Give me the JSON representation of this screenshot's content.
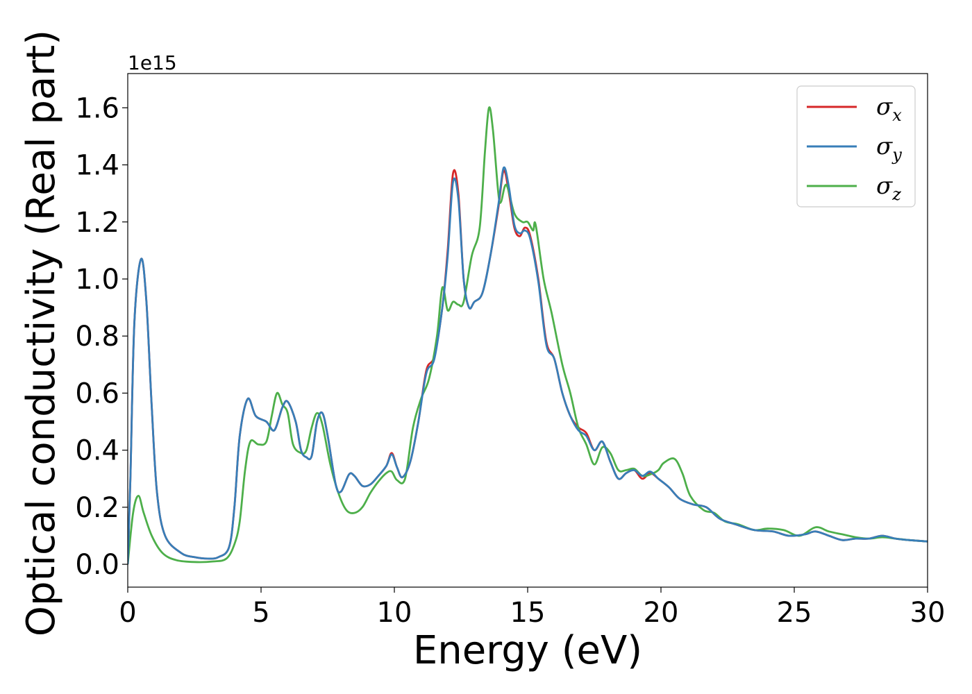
{
  "chart_data": {
    "type": "line",
    "xlabel": "Energy (eV)",
    "ylabel": "Optical conductivity (Real part)",
    "y_offset_label": "1e15",
    "xlim": [
      0,
      30
    ],
    "ylim": [
      -0.08,
      1.72
    ],
    "xticks": [
      0,
      5,
      10,
      15,
      20,
      25,
      30
    ],
    "xtick_labels": [
      "0",
      "5",
      "10",
      "15",
      "20",
      "25",
      "30"
    ],
    "yticks": [
      0.0,
      0.2,
      0.4,
      0.6,
      0.8,
      1.0,
      1.2,
      1.4,
      1.6
    ],
    "ytick_labels": [
      "0.0",
      "0.2",
      "0.4",
      "0.6",
      "0.8",
      "1.0",
      "1.2",
      "1.4",
      "1.6"
    ],
    "grid": false,
    "legend_position": "top-right",
    "series": [
      {
        "name": "σ",
        "sub": "x",
        "color": "#d62728",
        "points": [
          [
            0,
            0
          ],
          [
            0.1,
            0.3
          ],
          [
            0.25,
            0.85
          ],
          [
            0.5,
            1.07
          ],
          [
            0.7,
            0.92
          ],
          [
            0.9,
            0.55
          ],
          [
            1.1,
            0.25
          ],
          [
            1.4,
            0.1
          ],
          [
            2,
            0.04
          ],
          [
            2.5,
            0.025
          ],
          [
            3,
            0.02
          ],
          [
            3.4,
            0.025
          ],
          [
            3.8,
            0.06
          ],
          [
            4.0,
            0.2
          ],
          [
            4.2,
            0.45
          ],
          [
            4.5,
            0.58
          ],
          [
            4.8,
            0.52
          ],
          [
            5.2,
            0.5
          ],
          [
            5.5,
            0.47
          ],
          [
            5.8,
            0.55
          ],
          [
            6.0,
            0.57
          ],
          [
            6.3,
            0.5
          ],
          [
            6.5,
            0.4
          ],
          [
            6.7,
            0.375
          ],
          [
            6.9,
            0.38
          ],
          [
            7.1,
            0.5
          ],
          [
            7.3,
            0.53
          ],
          [
            7.5,
            0.45
          ],
          [
            7.8,
            0.28
          ],
          [
            8.0,
            0.255
          ],
          [
            8.3,
            0.315
          ],
          [
            8.5,
            0.31
          ],
          [
            8.8,
            0.275
          ],
          [
            9.1,
            0.28
          ],
          [
            9.4,
            0.31
          ],
          [
            9.7,
            0.345
          ],
          [
            9.9,
            0.39
          ],
          [
            10.1,
            0.34
          ],
          [
            10.3,
            0.305
          ],
          [
            10.6,
            0.36
          ],
          [
            10.9,
            0.5
          ],
          [
            11.2,
            0.68
          ],
          [
            11.5,
            0.73
          ],
          [
            11.8,
            0.9
          ],
          [
            12.0,
            1.1
          ],
          [
            12.2,
            1.37
          ],
          [
            12.4,
            1.3
          ],
          [
            12.6,
            1.0
          ],
          [
            12.8,
            0.9
          ],
          [
            13.0,
            0.92
          ],
          [
            13.3,
            0.95
          ],
          [
            13.6,
            1.08
          ],
          [
            13.9,
            1.25
          ],
          [
            14.1,
            1.38
          ],
          [
            14.3,
            1.3
          ],
          [
            14.5,
            1.18
          ],
          [
            14.7,
            1.15
          ],
          [
            14.9,
            1.18
          ],
          [
            15.1,
            1.15
          ],
          [
            15.4,
            1.0
          ],
          [
            15.7,
            0.78
          ],
          [
            16.0,
            0.72
          ],
          [
            16.3,
            0.6
          ],
          [
            16.6,
            0.52
          ],
          [
            16.9,
            0.48
          ],
          [
            17.2,
            0.46
          ],
          [
            17.5,
            0.4
          ],
          [
            17.8,
            0.43
          ],
          [
            18.1,
            0.36
          ],
          [
            18.4,
            0.3
          ],
          [
            18.7,
            0.32
          ],
          [
            19.0,
            0.33
          ],
          [
            19.3,
            0.3
          ],
          [
            19.6,
            0.32
          ],
          [
            19.9,
            0.3
          ],
          [
            20.3,
            0.27
          ],
          [
            20.7,
            0.23
          ],
          [
            21.2,
            0.21
          ],
          [
            21.7,
            0.2
          ],
          [
            22.2,
            0.16
          ],
          [
            22.8,
            0.14
          ],
          [
            23.5,
            0.12
          ],
          [
            24.2,
            0.115
          ],
          [
            24.8,
            0.1
          ],
          [
            25.4,
            0.105
          ],
          [
            25.8,
            0.115
          ],
          [
            26.3,
            0.1
          ],
          [
            26.8,
            0.085
          ],
          [
            27.3,
            0.09
          ],
          [
            27.8,
            0.09
          ],
          [
            28.3,
            0.1
          ],
          [
            28.8,
            0.09
          ],
          [
            29.3,
            0.085
          ],
          [
            30,
            0.08
          ]
        ]
      },
      {
        "name": "σ",
        "sub": "y",
        "color": "#377eb8",
        "points": [
          [
            0,
            0
          ],
          [
            0.1,
            0.3
          ],
          [
            0.25,
            0.85
          ],
          [
            0.5,
            1.07
          ],
          [
            0.7,
            0.92
          ],
          [
            0.9,
            0.55
          ],
          [
            1.1,
            0.25
          ],
          [
            1.4,
            0.1
          ],
          [
            2,
            0.04
          ],
          [
            2.5,
            0.025
          ],
          [
            3,
            0.02
          ],
          [
            3.4,
            0.025
          ],
          [
            3.8,
            0.06
          ],
          [
            4.0,
            0.2
          ],
          [
            4.2,
            0.45
          ],
          [
            4.5,
            0.58
          ],
          [
            4.8,
            0.52
          ],
          [
            5.2,
            0.5
          ],
          [
            5.5,
            0.47
          ],
          [
            5.8,
            0.55
          ],
          [
            6.0,
            0.57
          ],
          [
            6.3,
            0.5
          ],
          [
            6.5,
            0.4
          ],
          [
            6.7,
            0.375
          ],
          [
            6.9,
            0.38
          ],
          [
            7.1,
            0.5
          ],
          [
            7.3,
            0.53
          ],
          [
            7.5,
            0.45
          ],
          [
            7.8,
            0.28
          ],
          [
            8.0,
            0.255
          ],
          [
            8.3,
            0.315
          ],
          [
            8.5,
            0.31
          ],
          [
            8.8,
            0.275
          ],
          [
            9.1,
            0.28
          ],
          [
            9.4,
            0.31
          ],
          [
            9.7,
            0.345
          ],
          [
            9.9,
            0.385
          ],
          [
            10.1,
            0.34
          ],
          [
            10.3,
            0.305
          ],
          [
            10.6,
            0.36
          ],
          [
            10.9,
            0.5
          ],
          [
            11.2,
            0.67
          ],
          [
            11.5,
            0.72
          ],
          [
            11.8,
            0.9
          ],
          [
            12.0,
            1.08
          ],
          [
            12.2,
            1.34
          ],
          [
            12.4,
            1.28
          ],
          [
            12.6,
            1.0
          ],
          [
            12.8,
            0.9
          ],
          [
            13.0,
            0.92
          ],
          [
            13.3,
            0.95
          ],
          [
            13.6,
            1.08
          ],
          [
            13.9,
            1.26
          ],
          [
            14.1,
            1.39
          ],
          [
            14.3,
            1.32
          ],
          [
            14.5,
            1.19
          ],
          [
            14.7,
            1.16
          ],
          [
            14.9,
            1.17
          ],
          [
            15.1,
            1.14
          ],
          [
            15.4,
            0.99
          ],
          [
            15.7,
            0.77
          ],
          [
            16.0,
            0.72
          ],
          [
            16.3,
            0.6
          ],
          [
            16.6,
            0.52
          ],
          [
            16.9,
            0.47
          ],
          [
            17.2,
            0.45
          ],
          [
            17.5,
            0.4
          ],
          [
            17.8,
            0.43
          ],
          [
            18.1,
            0.36
          ],
          [
            18.4,
            0.3
          ],
          [
            18.7,
            0.32
          ],
          [
            19.0,
            0.33
          ],
          [
            19.3,
            0.31
          ],
          [
            19.6,
            0.325
          ],
          [
            19.9,
            0.3
          ],
          [
            20.3,
            0.27
          ],
          [
            20.7,
            0.23
          ],
          [
            21.2,
            0.21
          ],
          [
            21.7,
            0.2
          ],
          [
            22.2,
            0.16
          ],
          [
            22.8,
            0.14
          ],
          [
            23.5,
            0.12
          ],
          [
            24.2,
            0.115
          ],
          [
            24.8,
            0.1
          ],
          [
            25.4,
            0.105
          ],
          [
            25.8,
            0.115
          ],
          [
            26.3,
            0.1
          ],
          [
            26.8,
            0.085
          ],
          [
            27.3,
            0.09
          ],
          [
            27.8,
            0.09
          ],
          [
            28.3,
            0.1
          ],
          [
            28.8,
            0.09
          ],
          [
            29.3,
            0.085
          ],
          [
            30,
            0.08
          ]
        ]
      },
      {
        "name": "σ",
        "sub": "z",
        "color": "#4daf4a",
        "points": [
          [
            0,
            0
          ],
          [
            0.2,
            0.18
          ],
          [
            0.4,
            0.24
          ],
          [
            0.6,
            0.18
          ],
          [
            0.9,
            0.1
          ],
          [
            1.3,
            0.04
          ],
          [
            1.8,
            0.015
          ],
          [
            2.5,
            0.008
          ],
          [
            3.2,
            0.01
          ],
          [
            3.7,
            0.02
          ],
          [
            4.0,
            0.07
          ],
          [
            4.2,
            0.15
          ],
          [
            4.4,
            0.33
          ],
          [
            4.6,
            0.43
          ],
          [
            4.9,
            0.42
          ],
          [
            5.2,
            0.43
          ],
          [
            5.4,
            0.52
          ],
          [
            5.6,
            0.6
          ],
          [
            5.8,
            0.56
          ],
          [
            6.0,
            0.53
          ],
          [
            6.2,
            0.42
          ],
          [
            6.5,
            0.39
          ],
          [
            6.7,
            0.4
          ],
          [
            6.9,
            0.48
          ],
          [
            7.1,
            0.53
          ],
          [
            7.3,
            0.49
          ],
          [
            7.6,
            0.35
          ],
          [
            7.9,
            0.25
          ],
          [
            8.2,
            0.19
          ],
          [
            8.5,
            0.18
          ],
          [
            8.8,
            0.2
          ],
          [
            9.1,
            0.25
          ],
          [
            9.4,
            0.29
          ],
          [
            9.7,
            0.32
          ],
          [
            9.9,
            0.325
          ],
          [
            10.1,
            0.295
          ],
          [
            10.4,
            0.3
          ],
          [
            10.7,
            0.48
          ],
          [
            11.0,
            0.58
          ],
          [
            11.3,
            0.65
          ],
          [
            11.6,
            0.8
          ],
          [
            11.8,
            0.97
          ],
          [
            12.0,
            0.89
          ],
          [
            12.2,
            0.92
          ],
          [
            12.4,
            0.91
          ],
          [
            12.6,
            0.92
          ],
          [
            12.9,
            1.08
          ],
          [
            13.2,
            1.18
          ],
          [
            13.4,
            1.45
          ],
          [
            13.55,
            1.6
          ],
          [
            13.7,
            1.52
          ],
          [
            13.9,
            1.3
          ],
          [
            14.0,
            1.27
          ],
          [
            14.2,
            1.33
          ],
          [
            14.5,
            1.23
          ],
          [
            14.8,
            1.2
          ],
          [
            15.0,
            1.2
          ],
          [
            15.2,
            1.17
          ],
          [
            15.3,
            1.19
          ],
          [
            15.6,
            1.0
          ],
          [
            15.9,
            0.88
          ],
          [
            16.3,
            0.7
          ],
          [
            16.6,
            0.6
          ],
          [
            16.9,
            0.48
          ],
          [
            17.2,
            0.42
          ],
          [
            17.5,
            0.35
          ],
          [
            17.8,
            0.41
          ],
          [
            18.1,
            0.39
          ],
          [
            18.4,
            0.33
          ],
          [
            18.7,
            0.33
          ],
          [
            19.0,
            0.335
          ],
          [
            19.3,
            0.31
          ],
          [
            19.6,
            0.315
          ],
          [
            19.9,
            0.33
          ],
          [
            20.1,
            0.355
          ],
          [
            20.5,
            0.37
          ],
          [
            20.8,
            0.32
          ],
          [
            21.1,
            0.24
          ],
          [
            21.6,
            0.19
          ],
          [
            22.0,
            0.18
          ],
          [
            22.4,
            0.15
          ],
          [
            22.9,
            0.14
          ],
          [
            23.5,
            0.12
          ],
          [
            24.0,
            0.125
          ],
          [
            24.6,
            0.12
          ],
          [
            25.2,
            0.1
          ],
          [
            25.8,
            0.13
          ],
          [
            26.3,
            0.115
          ],
          [
            26.8,
            0.105
          ],
          [
            27.3,
            0.095
          ],
          [
            27.8,
            0.09
          ],
          [
            28.3,
            0.095
          ],
          [
            28.8,
            0.09
          ],
          [
            29.3,
            0.085
          ],
          [
            30,
            0.08
          ]
        ]
      }
    ]
  }
}
